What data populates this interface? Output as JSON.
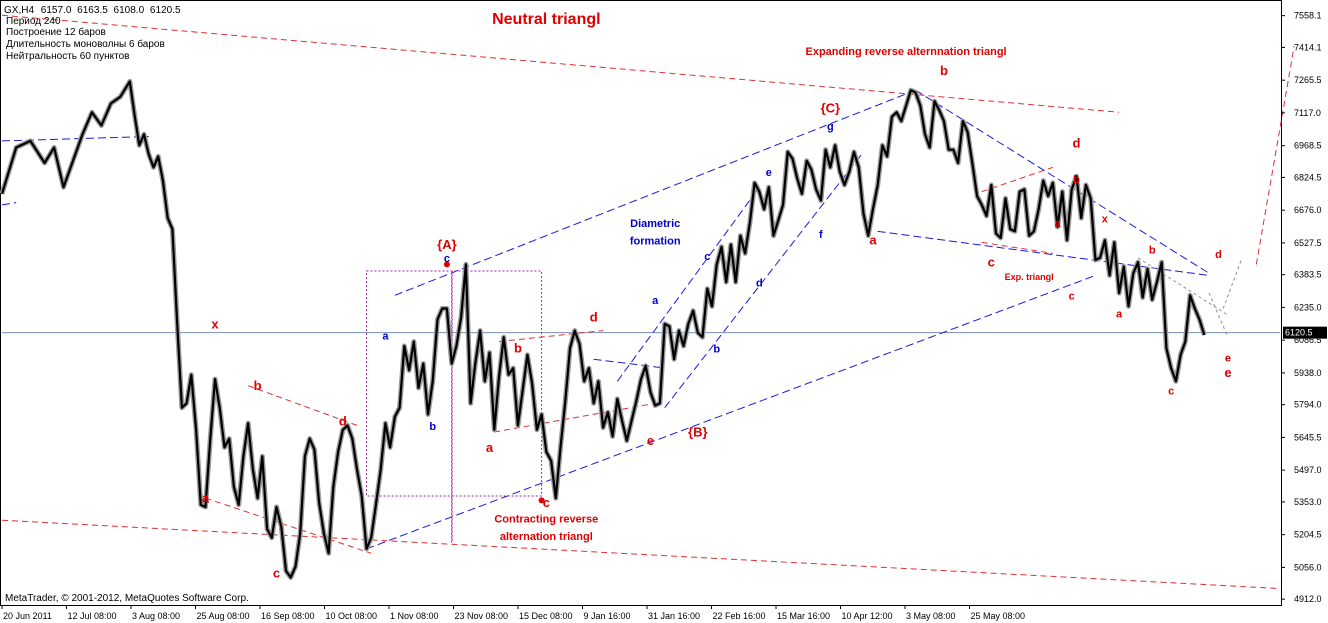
{
  "chart_data": {
    "type": "line",
    "symbol": "GX,H4",
    "ohlc": [
      "6157.0",
      "6163.5",
      "6108.0",
      "6120.5"
    ],
    "info_lines": [
      "Период  240",
      "Построение    12 баров",
      "Длительность моноволны   6 баров",
      "Нейтральность  60  пунктов"
    ],
    "title": "Neutral  triangl",
    "footer": "MetaTrader, © 2001-2012, MetaQuotes Software Corp.",
    "current_price": 6120.5,
    "current_price_label": "6120.5",
    "y_ticks": [
      7558.1,
      7414.1,
      7265.5,
      7117.0,
      6968.5,
      6824.5,
      6676.0,
      6527.5,
      6383.5,
      6235.0,
      6086.5,
      5938.0,
      5794.0,
      5645.5,
      5497.0,
      5353.0,
      5204.5,
      5056.0,
      4912.0
    ],
    "ylim": [
      4890,
      7620
    ],
    "x_ticks": [
      "20 Jun 2011",
      "12 Jul 08:00",
      "3 Aug 08:00",
      "25 Aug 08:00",
      "16 Sep 08:00",
      "10 Oct 08:00",
      "1 Nov 08:00",
      "23 Nov 08:00",
      "15 Dec 08:00",
      "9 Jan 16:00",
      "31 Jan 16:00",
      "22 Feb 16:00",
      "15 Mar 16:00",
      "10 Apr 12:00",
      "3 May 08:00",
      "25 May 08:00"
    ],
    "wave_path": [
      [
        0,
        6750
      ],
      [
        3,
        6960
      ],
      [
        6,
        6990
      ],
      [
        9,
        6890
      ],
      [
        11,
        6960
      ],
      [
        13,
        6780
      ],
      [
        15,
        6900
      ],
      [
        17,
        7020
      ],
      [
        19,
        7120
      ],
      [
        21,
        7060
      ],
      [
        23,
        7160
      ],
      [
        25,
        7190
      ],
      [
        27,
        7260
      ],
      [
        28,
        7110
      ],
      [
        29,
        6970
      ],
      [
        30,
        7020
      ],
      [
        31,
        6930
      ],
      [
        32,
        6870
      ],
      [
        33,
        6920
      ],
      [
        34,
        6810
      ],
      [
        35,
        6640
      ],
      [
        36,
        6590
      ],
      [
        37,
        6170
      ],
      [
        38,
        5780
      ],
      [
        39,
        5800
      ],
      [
        40,
        5930
      ],
      [
        41,
        5680
      ],
      [
        42,
        5340
      ],
      [
        43,
        5330
      ],
      [
        44,
        5640
      ],
      [
        45,
        5910
      ],
      [
        46,
        5780
      ],
      [
        47,
        5600
      ],
      [
        48,
        5640
      ],
      [
        49,
        5420
      ],
      [
        50,
        5340
      ],
      [
        51,
        5560
      ],
      [
        52,
        5710
      ],
      [
        53,
        5500
      ],
      [
        54,
        5370
      ],
      [
        55,
        5560
      ],
      [
        56,
        5230
      ],
      [
        57,
        5190
      ],
      [
        58,
        5330
      ],
      [
        59,
        5240
      ],
      [
        60,
        5040
      ],
      [
        61,
        5010
      ],
      [
        62,
        5060
      ],
      [
        63,
        5210
      ],
      [
        64,
        5560
      ],
      [
        65,
        5640
      ],
      [
        66,
        5590
      ],
      [
        67,
        5350
      ],
      [
        68,
        5210
      ],
      [
        69,
        5120
      ],
      [
        70,
        5420
      ],
      [
        71,
        5580
      ],
      [
        72,
        5680
      ],
      [
        73,
        5700
      ],
      [
        74,
        5640
      ],
      [
        75,
        5500
      ],
      [
        76,
        5380
      ],
      [
        77,
        5140
      ],
      [
        78,
        5190
      ],
      [
        79,
        5340
      ],
      [
        80,
        5500
      ],
      [
        81,
        5710
      ],
      [
        82,
        5600
      ],
      [
        83,
        5740
      ],
      [
        84,
        5780
      ],
      [
        85,
        6060
      ],
      [
        86,
        5950
      ],
      [
        87,
        6080
      ],
      [
        88,
        5870
      ],
      [
        89,
        5980
      ],
      [
        90,
        5750
      ],
      [
        91,
        5900
      ],
      [
        92,
        6180
      ],
      [
        93,
        6230
      ],
      [
        94,
        6230
      ],
      [
        95,
        5980
      ],
      [
        96,
        6060
      ],
      [
        97,
        6190
      ],
      [
        98,
        6430
      ],
      [
        99,
        5800
      ],
      [
        100,
        5980
      ],
      [
        101,
        6130
      ],
      [
        102,
        5900
      ],
      [
        103,
        6030
      ],
      [
        104,
        5680
      ],
      [
        105,
        5920
      ],
      [
        106,
        6100
      ],
      [
        107,
        5930
      ],
      [
        108,
        5960
      ],
      [
        109,
        5700
      ],
      [
        110,
        5860
      ],
      [
        111,
        6020
      ],
      [
        112,
        5890
      ],
      [
        113,
        5680
      ],
      [
        114,
        5750
      ],
      [
        115,
        5580
      ],
      [
        116,
        5540
      ],
      [
        117,
        5370
      ],
      [
        118,
        5600
      ],
      [
        119,
        5810
      ],
      [
        120,
        6050
      ],
      [
        121,
        6130
      ],
      [
        122,
        6070
      ],
      [
        123,
        5900
      ],
      [
        124,
        5960
      ],
      [
        125,
        5800
      ],
      [
        126,
        5900
      ],
      [
        127,
        5690
      ],
      [
        128,
        5760
      ],
      [
        129,
        5650
      ],
      [
        130,
        5820
      ],
      [
        131,
        5720
      ],
      [
        132,
        5630
      ],
      [
        133,
        5720
      ],
      [
        134,
        5810
      ],
      [
        135,
        5910
      ],
      [
        136,
        5970
      ],
      [
        137,
        5850
      ],
      [
        138,
        5790
      ],
      [
        139,
        5800
      ],
      [
        140,
        6160
      ],
      [
        141,
        6150
      ],
      [
        142,
        6000
      ],
      [
        143,
        6130
      ],
      [
        144,
        6060
      ],
      [
        145,
        6160
      ],
      [
        146,
        6220
      ],
      [
        147,
        6120
      ],
      [
        148,
        6100
      ],
      [
        149,
        6320
      ],
      [
        150,
        6240
      ],
      [
        151,
        6430
      ],
      [
        152,
        6510
      ],
      [
        153,
        6350
      ],
      [
        154,
        6520
      ],
      [
        155,
        6350
      ],
      [
        156,
        6560
      ],
      [
        157,
        6480
      ],
      [
        158,
        6620
      ],
      [
        159,
        6800
      ],
      [
        160,
        6760
      ],
      [
        161,
        6680
      ],
      [
        162,
        6780
      ],
      [
        163,
        6560
      ],
      [
        164,
        6630
      ],
      [
        165,
        6700
      ],
      [
        166,
        6940
      ],
      [
        167,
        6910
      ],
      [
        168,
        6820
      ],
      [
        169,
        6750
      ],
      [
        170,
        6900
      ],
      [
        171,
        6860
      ],
      [
        172,
        6770
      ],
      [
        173,
        6720
      ],
      [
        174,
        6950
      ],
      [
        175,
        6870
      ],
      [
        176,
        6970
      ],
      [
        177,
        6850
      ],
      [
        178,
        6790
      ],
      [
        179,
        6850
      ],
      [
        180,
        6940
      ],
      [
        181,
        6870
      ],
      [
        182,
        6660
      ],
      [
        183,
        6560
      ],
      [
        184,
        6680
      ],
      [
        185,
        6790
      ],
      [
        186,
        6970
      ],
      [
        187,
        6920
      ],
      [
        188,
        7100
      ],
      [
        189,
        7120
      ],
      [
        190,
        7080
      ],
      [
        191,
        7150
      ],
      [
        192,
        7220
      ],
      [
        193,
        7210
      ],
      [
        194,
        7150
      ],
      [
        195,
        7020
      ],
      [
        196,
        6960
      ],
      [
        197,
        7170
      ],
      [
        198,
        7130
      ],
      [
        199,
        7080
      ],
      [
        200,
        6950
      ],
      [
        201,
        6950
      ],
      [
        202,
        6890
      ],
      [
        203,
        7080
      ],
      [
        204,
        7030
      ],
      [
        205,
        6890
      ],
      [
        206,
        6740
      ],
      [
        207,
        6700
      ],
      [
        208,
        6650
      ],
      [
        209,
        6790
      ],
      [
        210,
        6570
      ],
      [
        211,
        6550
      ],
      [
        212,
        6730
      ],
      [
        213,
        6590
      ],
      [
        214,
        6580
      ],
      [
        215,
        6760
      ],
      [
        216,
        6770
      ],
      [
        217,
        6560
      ],
      [
        218,
        6580
      ],
      [
        219,
        6680
      ],
      [
        220,
        6810
      ],
      [
        221,
        6740
      ],
      [
        222,
        6800
      ],
      [
        223,
        6600
      ],
      [
        224,
        6760
      ],
      [
        225,
        6540
      ],
      [
        226,
        6770
      ],
      [
        227,
        6830
      ],
      [
        228,
        6640
      ],
      [
        229,
        6790
      ],
      [
        230,
        6730
      ],
      [
        231,
        6450
      ],
      [
        232,
        6460
      ],
      [
        233,
        6540
      ],
      [
        234,
        6380
      ],
      [
        235,
        6530
      ],
      [
        236,
        6300
      ],
      [
        237,
        6420
      ],
      [
        238,
        6240
      ],
      [
        239,
        6390
      ],
      [
        240,
        6440
      ],
      [
        241,
        6280
      ],
      [
        242,
        6410
      ],
      [
        243,
        6270
      ],
      [
        244,
        6350
      ],
      [
        245,
        6440
      ],
      [
        246,
        6050
      ],
      [
        247,
        5960
      ],
      [
        248,
        5900
      ],
      [
        249,
        6020
      ],
      [
        250,
        6080
      ],
      [
        251,
        6290
      ],
      [
        252,
        6230
      ],
      [
        253,
        6180
      ],
      [
        254,
        6110
      ]
    ],
    "annotations_red": [
      {
        "text": "Neutral  triangl",
        "x": 115,
        "y": 7520,
        "size": 16
      },
      {
        "text": "Expanding reverse alternnation triangl",
        "x": 191,
        "y": 7380,
        "size": 11
      },
      {
        "text": "{A}",
        "x": 94,
        "y": 6500,
        "size": 13
      },
      {
        "text": "{B}",
        "x": 147,
        "y": 5650,
        "size": 13
      },
      {
        "text": "{C}",
        "x": 175,
        "y": 7120,
        "size": 13
      },
      {
        "text": "Contracting reverse",
        "x": 115,
        "y": 5260,
        "size": 11
      },
      {
        "text": "alternation triangl",
        "x": 115,
        "y": 5180,
        "size": 11
      },
      {
        "text": "Exp. triangl",
        "x": 217,
        "y": 6360,
        "size": 9
      },
      {
        "text": "x",
        "x": 45,
        "y": 6140,
        "size": 13
      },
      {
        "text": "b",
        "x": 54,
        "y": 5860,
        "size": 13
      },
      {
        "text": "d",
        "x": 72,
        "y": 5700,
        "size": 13
      },
      {
        "text": "a",
        "x": 43,
        "y": 5350,
        "size": 13
      },
      {
        "text": "c",
        "x": 58,
        "y": 5010,
        "size": 13
      },
      {
        "text": "a",
        "x": 103,
        "y": 5580,
        "size": 13
      },
      {
        "text": "b",
        "x": 109,
        "y": 6030,
        "size": 13
      },
      {
        "text": "c",
        "x": 115,
        "y": 5330,
        "size": 13
      },
      {
        "text": "d",
        "x": 125,
        "y": 6170,
        "size": 13
      },
      {
        "text": "e",
        "x": 137,
        "y": 5610,
        "size": 13
      },
      {
        "text": "b",
        "x": 199,
        "y": 7290,
        "size": 13
      },
      {
        "text": "a",
        "x": 184,
        "y": 6520,
        "size": 13
      },
      {
        "text": "c",
        "x": 209,
        "y": 6420,
        "size": 13
      },
      {
        "text": "d",
        "x": 227,
        "y": 6960,
        "size": 13
      },
      {
        "text": "b",
        "x": 227,
        "y": 6800,
        "size": 11
      },
      {
        "text": "a",
        "x": 223,
        "y": 6600,
        "size": 11
      },
      {
        "text": "x",
        "x": 233,
        "y": 6620,
        "size": 11
      },
      {
        "text": "c",
        "x": 226,
        "y": 6270,
        "size": 11
      },
      {
        "text": "b",
        "x": 243,
        "y": 6480,
        "size": 11
      },
      {
        "text": "a",
        "x": 236,
        "y": 6190,
        "size": 11
      },
      {
        "text": "d",
        "x": 257,
        "y": 6460,
        "size": 11
      },
      {
        "text": "c",
        "x": 247,
        "y": 5840,
        "size": 11
      },
      {
        "text": "e",
        "x": 259,
        "y": 5990,
        "size": 11
      },
      {
        "text": "e",
        "x": 259,
        "y": 5920,
        "size": 13
      }
    ],
    "annotations_blue": [
      {
        "text": "Diametric",
        "x": 138,
        "y": 6600,
        "size": 11
      },
      {
        "text": "formation",
        "x": 138,
        "y": 6520,
        "size": 11
      },
      {
        "text": "c",
        "x": 94,
        "y": 6440,
        "size": 11
      },
      {
        "text": "a",
        "x": 81,
        "y": 6090,
        "size": 11
      },
      {
        "text": "b",
        "x": 91,
        "y": 5680,
        "size": 11
      },
      {
        "text": "a",
        "x": 138,
        "y": 6250,
        "size": 11
      },
      {
        "text": "b",
        "x": 151,
        "y": 6030,
        "size": 11
      },
      {
        "text": "c",
        "x": 149,
        "y": 6450,
        "size": 11
      },
      {
        "text": "d",
        "x": 160,
        "y": 6330,
        "size": 11
      },
      {
        "text": "e",
        "x": 162,
        "y": 6830,
        "size": 11
      },
      {
        "text": "f",
        "x": 173,
        "y": 6550,
        "size": 11
      },
      {
        "text": "g",
        "x": 175,
        "y": 7040,
        "size": 11
      }
    ],
    "lines_red_dashed": [
      [
        [
          0,
          7560
        ],
        [
          236,
          7120
        ]
      ],
      [
        [
          0,
          5270
        ],
        [
          270,
          4960
        ]
      ],
      [
        [
          43,
          5370
        ],
        [
          78,
          5120
        ]
      ],
      [
        [
          52,
          5880
        ],
        [
          75,
          5700
        ]
      ],
      [
        [
          105,
          6080
        ],
        [
          127,
          6130
        ]
      ],
      [
        [
          104,
          5670
        ],
        [
          138,
          5800
        ]
      ],
      [
        [
          207,
          6760
        ],
        [
          222,
          6870
        ]
      ],
      [
        [
          207,
          6530
        ],
        [
          222,
          6480
        ]
      ],
      [
        [
          265,
          6430
        ],
        [
          273,
          7420
        ]
      ]
    ],
    "lines_blue_dashed": [
      [
        [
          0,
          6990
        ],
        [
          31,
          7010
        ]
      ],
      [
        [
          0,
          6700
        ],
        [
          3,
          6710
        ]
      ],
      [
        [
          83,
          6290
        ],
        [
          193,
          7220
        ]
      ],
      [
        [
          77,
          5140
        ],
        [
          231,
          6380
        ]
      ],
      [
        [
          130,
          5900
        ],
        [
          160,
          6780
        ]
      ],
      [
        [
          140,
          5780
        ],
        [
          182,
          6940
        ]
      ],
      [
        [
          185,
          6580
        ],
        [
          255,
          6380
        ]
      ],
      [
        [
          193,
          7220
        ],
        [
          255,
          6390
        ]
      ],
      [
        [
          125,
          6000
        ],
        [
          140,
          5960
        ]
      ]
    ],
    "lines_gray_dashed": [
      [
        [
          240,
          6460
        ],
        [
          259,
          6200
        ]
      ],
      [
        [
          255,
          6300
        ],
        [
          259,
          6100
        ]
      ],
      [
        [
          258,
          6230
        ],
        [
          262,
          6460
        ]
      ]
    ],
    "boxes_purple_dotted": [
      [
        [
          77,
          6400
        ],
        [
          114,
          5380
        ]
      ],
      [
        [
          95,
          6400
        ],
        [
          95,
          5170
        ]
      ]
    ],
    "markers": [
      {
        "x": 114,
        "y": 5360
      },
      {
        "x": 94,
        "y": 6430
      }
    ]
  }
}
